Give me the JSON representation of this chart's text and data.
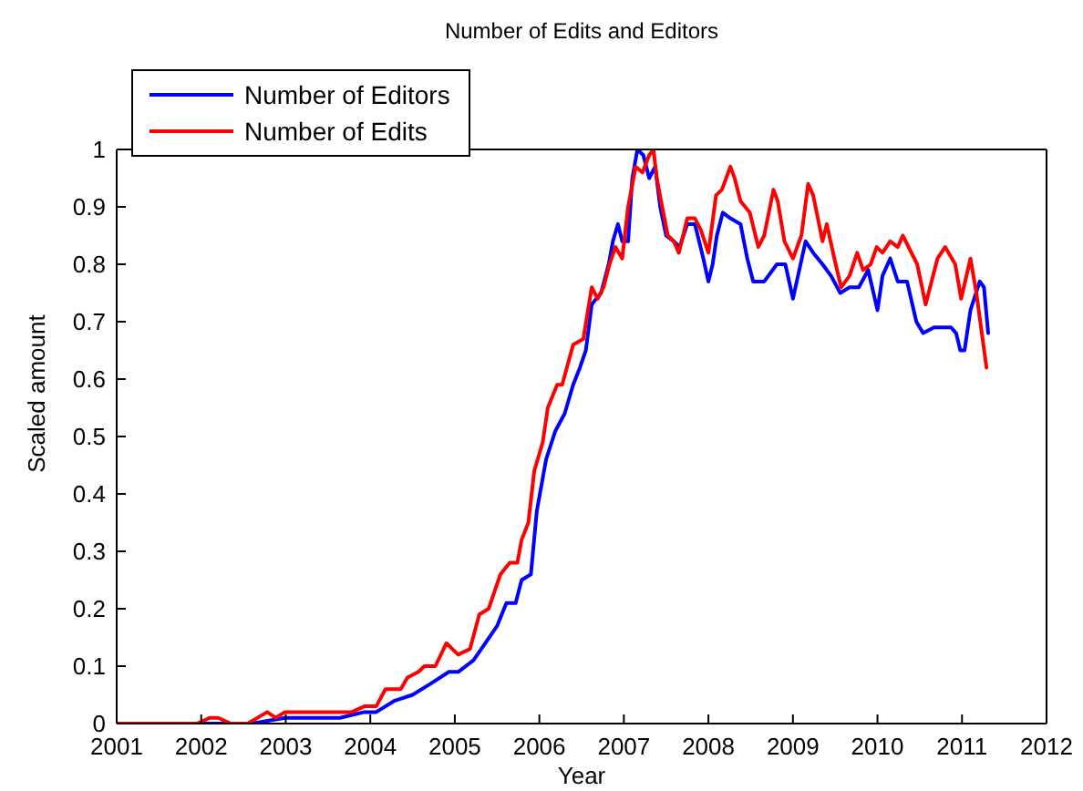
{
  "chart_data": {
    "type": "line",
    "title": "Number of Edits and Editors",
    "xlabel": "Year",
    "ylabel": "Scaled amount",
    "xlim": [
      2001,
      2012
    ],
    "xticks": [
      2001,
      2002,
      2003,
      2004,
      2005,
      2006,
      2007,
      2008,
      2009,
      2010,
      2011,
      2012
    ],
    "ylim": [
      0,
      1
    ],
    "yticks": [
      0,
      0.1,
      0.2,
      0.3,
      0.4,
      0.5,
      0.6,
      0.7,
      0.8,
      0.9,
      1
    ],
    "legend": "top left",
    "line_style": "solid",
    "series": [
      {
        "name": "Number of Editors",
        "color": "#0000ff",
        "x": [
          2001.0,
          2002.2,
          2002.6,
          2002.99,
          2003.43,
          2003.64,
          2003.93,
          2004.07,
          2004.29,
          2004.5,
          2004.72,
          2004.93,
          2005.04,
          2005.22,
          2005.36,
          2005.5,
          2005.61,
          2005.72,
          2005.79,
          2005.9,
          2005.97,
          2006.08,
          2006.19,
          2006.3,
          2006.4,
          2006.48,
          2006.55,
          2006.62,
          2006.73,
          2006.82,
          2006.87,
          2006.93,
          2006.98,
          2007.05,
          2007.1,
          2007.16,
          2007.23,
          2007.3,
          2007.37,
          2007.43,
          2007.5,
          2007.59,
          2007.66,
          2007.75,
          2007.84,
          2007.94,
          2008.0,
          2008.05,
          2008.1,
          2008.17,
          2008.26,
          2008.38,
          2008.46,
          2008.53,
          2008.66,
          2008.81,
          2008.91,
          2009.0,
          2009.06,
          2009.15,
          2009.24,
          2009.35,
          2009.45,
          2009.56,
          2009.67,
          2009.78,
          2009.89,
          2010.0,
          2010.06,
          2010.15,
          2010.24,
          2010.35,
          2010.46,
          2010.54,
          2010.67,
          2010.78,
          2010.87,
          2010.93,
          2010.98,
          2011.03,
          2011.1,
          2011.21,
          2011.26,
          2011.31
        ],
        "values": [
          0.0,
          0.0,
          0.0,
          0.01,
          0.01,
          0.01,
          0.02,
          0.02,
          0.04,
          0.05,
          0.07,
          0.09,
          0.09,
          0.11,
          0.14,
          0.17,
          0.21,
          0.21,
          0.25,
          0.26,
          0.37,
          0.46,
          0.51,
          0.54,
          0.59,
          0.62,
          0.65,
          0.73,
          0.75,
          0.8,
          0.84,
          0.87,
          0.84,
          0.84,
          0.95,
          1.0,
          0.99,
          0.95,
          0.97,
          0.9,
          0.85,
          0.84,
          0.83,
          0.87,
          0.87,
          0.81,
          0.77,
          0.8,
          0.85,
          0.89,
          0.88,
          0.87,
          0.81,
          0.77,
          0.77,
          0.8,
          0.8,
          0.74,
          0.78,
          0.84,
          0.82,
          0.8,
          0.78,
          0.75,
          0.76,
          0.76,
          0.79,
          0.72,
          0.78,
          0.81,
          0.77,
          0.77,
          0.7,
          0.68,
          0.69,
          0.69,
          0.69,
          0.68,
          0.65,
          0.65,
          0.72,
          0.77,
          0.76,
          0.68
        ]
      },
      {
        "name": "Number of Edits",
        "color": "#ff0000",
        "x": [
          2001.0,
          2001.5,
          2001.95,
          2002.1,
          2002.2,
          2002.35,
          2002.55,
          2002.78,
          2002.88,
          2002.99,
          2003.2,
          2003.45,
          2003.64,
          2003.78,
          2003.93,
          2004.07,
          2004.18,
          2004.36,
          2004.44,
          2004.57,
          2004.64,
          2004.77,
          2004.9,
          2005.04,
          2005.18,
          2005.29,
          2005.4,
          2005.54,
          2005.65,
          2005.74,
          2005.79,
          2005.87,
          2005.94,
          2006.04,
          2006.1,
          2006.21,
          2006.27,
          2006.4,
          2006.52,
          2006.62,
          2006.69,
          2006.76,
          2006.83,
          2006.9,
          2006.98,
          2007.05,
          2007.14,
          2007.22,
          2007.3,
          2007.35,
          2007.39,
          2007.44,
          2007.52,
          2007.59,
          2007.65,
          2007.75,
          2007.84,
          2007.91,
          2008.0,
          2008.09,
          2008.16,
          2008.26,
          2008.31,
          2008.38,
          2008.49,
          2008.59,
          2008.66,
          2008.77,
          2008.82,
          2008.9,
          2009.0,
          2009.1,
          2009.18,
          2009.24,
          2009.35,
          2009.4,
          2009.49,
          2009.57,
          2009.67,
          2009.76,
          2009.83,
          2009.92,
          2009.99,
          2010.06,
          2010.15,
          2010.24,
          2010.3,
          2010.47,
          2010.57,
          2010.71,
          2010.8,
          2010.92,
          2010.99,
          2011.1,
          2011.17,
          2011.29
        ],
        "values": [
          0.0,
          0.0,
          0.0,
          0.01,
          0.01,
          0.0,
          0.0,
          0.02,
          0.01,
          0.02,
          0.02,
          0.02,
          0.02,
          0.02,
          0.03,
          0.03,
          0.06,
          0.06,
          0.08,
          0.09,
          0.1,
          0.1,
          0.14,
          0.12,
          0.13,
          0.19,
          0.2,
          0.26,
          0.28,
          0.28,
          0.32,
          0.35,
          0.44,
          0.49,
          0.55,
          0.59,
          0.59,
          0.66,
          0.67,
          0.76,
          0.74,
          0.76,
          0.8,
          0.83,
          0.81,
          0.9,
          0.97,
          0.96,
          0.99,
          1.0,
          0.95,
          0.91,
          0.85,
          0.84,
          0.82,
          0.88,
          0.88,
          0.86,
          0.82,
          0.92,
          0.93,
          0.97,
          0.95,
          0.91,
          0.89,
          0.83,
          0.85,
          0.93,
          0.91,
          0.84,
          0.81,
          0.85,
          0.94,
          0.92,
          0.84,
          0.87,
          0.81,
          0.76,
          0.78,
          0.82,
          0.79,
          0.8,
          0.83,
          0.82,
          0.84,
          0.83,
          0.85,
          0.8,
          0.73,
          0.81,
          0.83,
          0.8,
          0.74,
          0.81,
          0.75,
          0.62
        ]
      }
    ]
  }
}
